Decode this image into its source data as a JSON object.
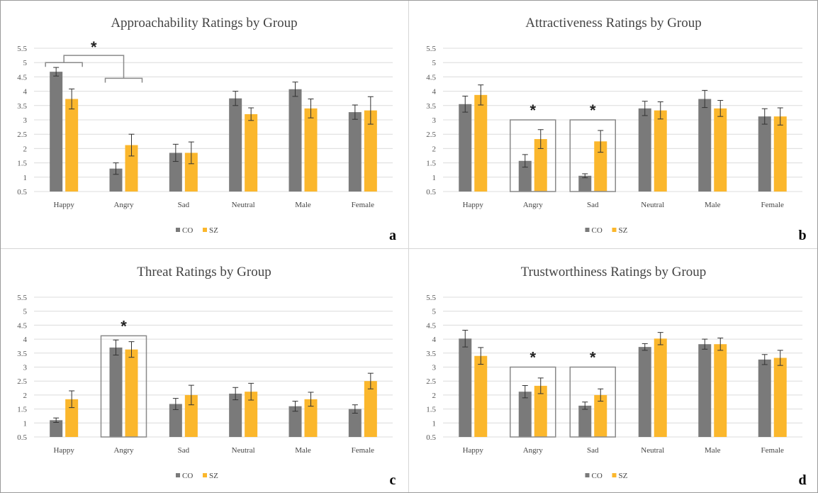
{
  "legend": {
    "co": "CO",
    "sz": "SZ"
  },
  "colors": {
    "co": "#7a7a7a",
    "sz": "#fbb72c",
    "grid": "#dcdcdc",
    "error": "#333333",
    "bracket": "#8a8a8a"
  },
  "chart_data": [
    {
      "type": "bar",
      "title": "Approachability Ratings by Group",
      "letter": "a",
      "categories": [
        "Happy",
        "Angry",
        "Sad",
        "Neutral",
        "Male",
        "Female"
      ],
      "yticks": [
        "0.5",
        "1",
        "1.5",
        "2",
        "2.5",
        "3",
        "3.5",
        "4",
        "4.5",
        "5",
        "5.5"
      ],
      "ylim": [
        0.5,
        5.5
      ],
      "grid": true,
      "legend_position": "bottom",
      "series": [
        {
          "name": "CO",
          "values": [
            4.68,
            1.3,
            1.85,
            3.75,
            4.07,
            3.27
          ],
          "errors": [
            0.15,
            0.2,
            0.3,
            0.25,
            0.25,
            0.25
          ]
        },
        {
          "name": "SZ",
          "values": [
            3.73,
            2.12,
            1.85,
            3.2,
            3.4,
            3.33
          ],
          "errors": [
            0.35,
            0.38,
            0.38,
            0.22,
            0.33,
            0.48
          ]
        }
      ],
      "annotations": [
        {
          "type": "bracket-star",
          "text": "*",
          "groups": [
            [
              0
            ],
            [
              1
            ]
          ]
        }
      ]
    },
    {
      "type": "bar",
      "title": "Attractiveness Ratings by Group",
      "letter": "b",
      "categories": [
        "Happy",
        "Angry",
        "Sad",
        "Neutral",
        "Male",
        "Female"
      ],
      "yticks": [
        "0.5",
        "1",
        "1.5",
        "2",
        "2.5",
        "3",
        "3.5",
        "4",
        "4.5",
        "5",
        "5.5"
      ],
      "ylim": [
        0.5,
        5.5
      ],
      "grid": true,
      "legend_position": "bottom",
      "series": [
        {
          "name": "CO",
          "values": [
            3.55,
            1.57,
            1.05,
            3.4,
            3.73,
            3.12
          ],
          "errors": [
            0.28,
            0.22,
            0.07,
            0.25,
            0.3,
            0.27
          ]
        },
        {
          "name": "SZ",
          "values": [
            3.87,
            2.33,
            2.25,
            3.33,
            3.4,
            3.12
          ],
          "errors": [
            0.35,
            0.33,
            0.38,
            0.3,
            0.28,
            0.3
          ]
        }
      ],
      "annotations": [
        {
          "type": "box-star",
          "text": "*",
          "category": 1,
          "top": 3.0
        },
        {
          "type": "box-star",
          "text": "*",
          "category": 2,
          "top": 3.0
        }
      ]
    },
    {
      "type": "bar",
      "title": "Threat Ratings by Group",
      "letter": "c",
      "categories": [
        "Happy",
        "Angry",
        "Sad",
        "Neutral",
        "Male",
        "Female"
      ],
      "yticks": [
        "0.5",
        "1",
        "1.5",
        "2",
        "2.5",
        "3",
        "3.5",
        "4",
        "4.5",
        "5",
        "5.5"
      ],
      "ylim": [
        0.5,
        5.5
      ],
      "grid": true,
      "legend_position": "bottom",
      "series": [
        {
          "name": "CO",
          "values": [
            1.1,
            3.7,
            1.68,
            2.05,
            1.6,
            1.5
          ],
          "errors": [
            0.08,
            0.27,
            0.2,
            0.22,
            0.18,
            0.15
          ]
        },
        {
          "name": "SZ",
          "values": [
            1.85,
            3.63,
            2.0,
            2.12,
            1.85,
            2.5
          ],
          "errors": [
            0.3,
            0.28,
            0.35,
            0.3,
            0.25,
            0.28
          ]
        }
      ],
      "annotations": [
        {
          "type": "box-star",
          "text": "*",
          "category": 1,
          "top": 4.12
        }
      ]
    },
    {
      "type": "bar",
      "title": "Trustworthiness Ratings by Group",
      "letter": "d",
      "categories": [
        "Happy",
        "Angry",
        "Sad",
        "Neutral",
        "Male",
        "Female"
      ],
      "yticks": [
        "0.5",
        "1",
        "1.5",
        "2",
        "2.5",
        "3",
        "3.5",
        "4",
        "4.5",
        "5",
        "5.5"
      ],
      "ylim": [
        0.5,
        5.5
      ],
      "grid": true,
      "legend_position": "bottom",
      "series": [
        {
          "name": "CO",
          "values": [
            4.02,
            2.12,
            1.62,
            3.72,
            3.82,
            3.27
          ],
          "errors": [
            0.3,
            0.22,
            0.13,
            0.12,
            0.18,
            0.18
          ]
        },
        {
          "name": "SZ",
          "values": [
            3.4,
            2.33,
            2.0,
            4.02,
            3.82,
            3.33
          ],
          "errors": [
            0.3,
            0.28,
            0.22,
            0.22,
            0.22,
            0.27
          ]
        }
      ],
      "annotations": [
        {
          "type": "box-star",
          "text": "*",
          "category": 1,
          "top": 3.0
        },
        {
          "type": "box-star",
          "text": "*",
          "category": 2,
          "top": 3.0
        }
      ]
    }
  ]
}
